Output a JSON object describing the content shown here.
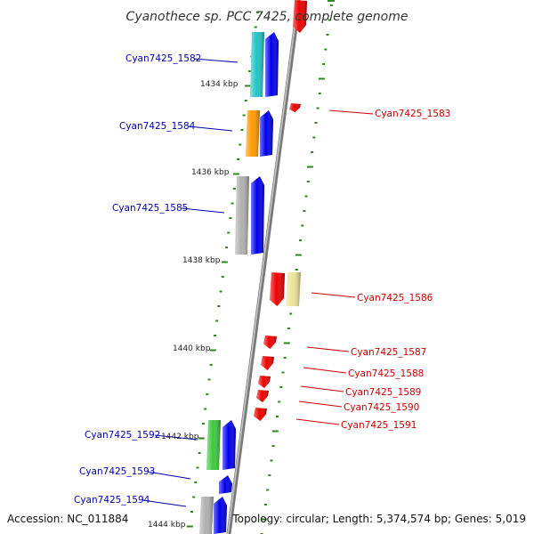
{
  "title": "Cyanothece sp. PCC 7425, complete genome",
  "footer": {
    "accession": "Accession: NC_011884",
    "summary": "Topology: circular; Length: 5,374,574 bp; Genes: 5,019"
  },
  "kbp_markers": [
    "1434 kbp",
    "1436 kbp",
    "1438 kbp",
    "1440 kbp",
    "1442 kbp",
    "1444 kbp"
  ],
  "colors": {
    "cds_forward": "#0000ee",
    "cds_reverse": "#ee0000",
    "backbone": "#8a8a8a",
    "tick": "#2a8a1a",
    "label_forward": "#0000aa",
    "label_reverse": "#cc0000",
    "cog_cyan": "#22c4c4",
    "cog_orange": "#ff9900",
    "cog_gray": "#b0b0b0",
    "cog_khaki": "#ece49a",
    "cog_green": "#3ec83e"
  },
  "genes_forward": [
    {
      "label": "Cyan7425_1582",
      "cog_color": "cog_cyan"
    },
    {
      "label": "Cyan7425_1584",
      "cog_color": "cog_orange"
    },
    {
      "label": "Cyan7425_1585",
      "cog_color": "cog_gray"
    },
    {
      "label": "Cyan7425_1592",
      "cog_color": "cog_green"
    },
    {
      "label": "Cyan7425_1593",
      "cog_color": ""
    },
    {
      "label": "Cyan7425_1594",
      "cog_color": "cog_gray"
    }
  ],
  "genes_reverse": [
    {
      "label": "Cyan7425_1583",
      "cog_color": ""
    },
    {
      "label": "Cyan7425_1586",
      "cog_color": "cog_khaki"
    },
    {
      "label": "Cyan7425_1587",
      "cog_color": ""
    },
    {
      "label": "Cyan7425_1588",
      "cog_color": ""
    },
    {
      "label": "Cyan7425_1589",
      "cog_color": ""
    },
    {
      "label": "Cyan7425_1590",
      "cog_color": ""
    },
    {
      "label": "Cyan7425_1591",
      "cog_color": ""
    }
  ]
}
